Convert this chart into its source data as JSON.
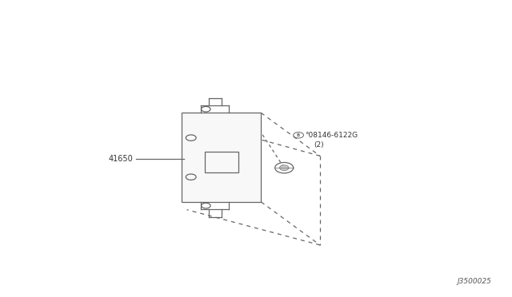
{
  "bg_color": "#ffffff",
  "line_color": "#666666",
  "part_label_41650": "41650",
  "part_label_bolt": "°08146-6122G",
  "part_label_bolt2": "(2)",
  "diagram_code": "J3500025",
  "bx": 0.355,
  "by": 0.32,
  "bw": 0.155,
  "bh": 0.3
}
